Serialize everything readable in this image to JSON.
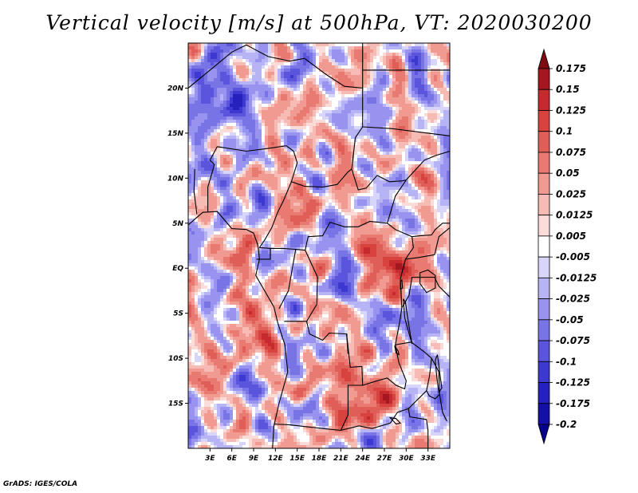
{
  "title": "Vertical velocity [m/s] at 500hPa, VT: 2020030200",
  "footer": "GrADS: IGES/COLA",
  "map": {
    "lon_range": [
      0,
      36
    ],
    "lat_range": [
      -20,
      25
    ],
    "field_seed": 20200302,
    "lon_ticks": [
      "3E",
      "6E",
      "9E",
      "12E",
      "15E",
      "18E",
      "21E",
      "24E",
      "27E",
      "30E",
      "33E"
    ],
    "lat_ticks": [
      "20N",
      "15N",
      "10N",
      "5N",
      "EQ",
      "5S",
      "10S",
      "15S"
    ]
  },
  "colorbar": {
    "labels": [
      "0.175",
      "0.15",
      "0.125",
      "0.1",
      "0.075",
      "0.05",
      "0.025",
      "0.0125",
      "0.005",
      "-0.005",
      "-0.0125",
      "-0.025",
      "-0.05",
      "-0.075",
      "-0.1",
      "-0.125",
      "-0.175",
      "-0.2"
    ],
    "colors": [
      "#7d0c12",
      "#a51620",
      "#c42a2e",
      "#d8423f",
      "#e05e58",
      "#e97a72",
      "#f09a92",
      "#f6bbb4",
      "#fbdcd8",
      "#ffffff",
      "#d7d6fa",
      "#b6b4f5",
      "#9793ee",
      "#7874e6",
      "#5a55dc",
      "#3d38cf",
      "#2621bd",
      "#140fa6",
      "#06038a"
    ]
  }
}
